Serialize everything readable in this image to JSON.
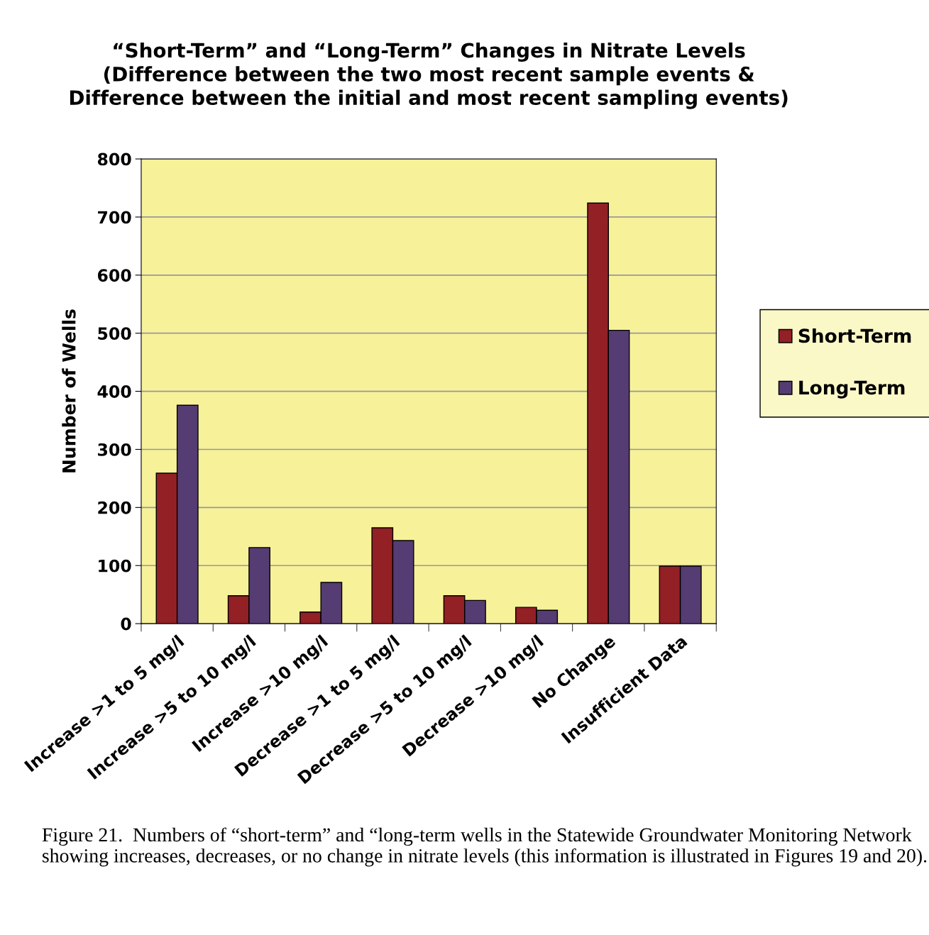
{
  "chart_data": {
    "type": "bar",
    "title": "“Short-Term” and “Long-Term” Changes in Nitrate Levels\n(Difference between the two most recent sample events &\nDifference between the initial and most recent sampling events)",
    "ylabel": "Number of Wells",
    "categories": [
      "Increase >1 to 5 mg/l",
      "Increase >5 to 10 mg/l",
      "Increase >10 mg/l",
      "Decrease >1 to 5 mg/l",
      "Decrease >5 to 10 mg/l",
      "Decrease >10 mg/l",
      "No Change",
      "Insufficient Data"
    ],
    "series": [
      {
        "name": "Short-Term",
        "color": "#922025",
        "values": [
          259,
          48,
          20,
          165,
          48,
          28,
          724,
          99
        ]
      },
      {
        "name": "Long-Term",
        "color": "#553c72",
        "values": [
          376,
          131,
          71,
          143,
          40,
          23,
          505,
          99
        ]
      }
    ],
    "ylim": [
      0,
      800
    ],
    "yticks": [
      0,
      100,
      200,
      300,
      400,
      500,
      600,
      700,
      800
    ],
    "grid": "y",
    "legend": "right",
    "annotations": [
      "Figure 21.  Numbers of “short-term” and “long-term wells in the Statewide Groundwater Monitoring Network showing increases, decreases, or no change in nitrate levels (this information is illustrated in Figures 19 and 20)."
    ]
  }
}
